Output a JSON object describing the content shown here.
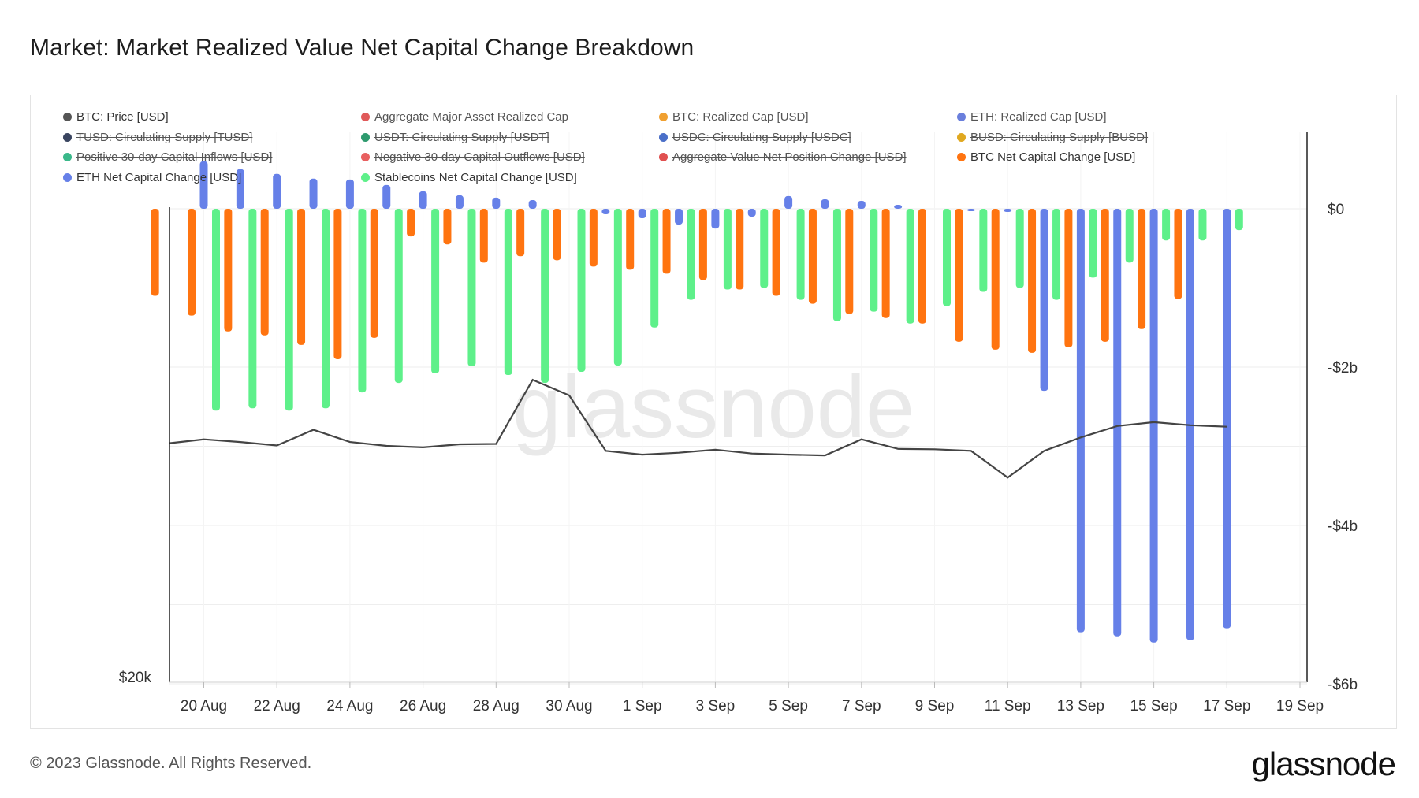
{
  "title": "Market: Market Realized Value Net Capital Change Breakdown",
  "footer": "© 2023 Glassnode. All Rights Reserved.",
  "brand": "glassnode",
  "watermark": "glassnode",
  "legend": [
    {
      "label": "BTC: Price [USD]",
      "color": "#555555",
      "active": true
    },
    {
      "label": "Aggregate Major Asset Realized Cap",
      "color": "#e05a5a",
      "active": false
    },
    {
      "label": "BTC: Realized Cap [USD]",
      "color": "#f0a030",
      "active": false
    },
    {
      "label": "ETH: Realized Cap [USD]",
      "color": "#6a7fdc",
      "active": false
    },
    {
      "label": "TUSD: Circulating Supply [TUSD]",
      "color": "#3a4560",
      "active": false
    },
    {
      "label": "USDT: Circulating Supply [USDT]",
      "color": "#2e9a6e",
      "active": false
    },
    {
      "label": "USDC: Circulating Supply [USDC]",
      "color": "#4a6fc8",
      "active": false
    },
    {
      "label": "BUSD: Circulating Supply [BUSD]",
      "color": "#e0a820",
      "active": false
    },
    {
      "label": "Positive 30-day Capital Inflows [USD]",
      "color": "#3ab88a",
      "active": false
    },
    {
      "label": "Negative 30-day Capital Outflows [USD]",
      "color": "#e86060",
      "active": false
    },
    {
      "label": "Aggregate Value Net Position Change [USD]",
      "color": "#e05050",
      "active": false
    },
    {
      "label": "BTC Net Capital Change [USD]",
      "color": "#ff7410",
      "active": true
    },
    {
      "label": "ETH Net Capital Change [USD]",
      "color": "#6680e8",
      "active": true
    },
    {
      "label": "Stablecoins Net Capital Change [USD]",
      "color": "#5ef08a",
      "active": true
    }
  ],
  "chart_data": {
    "type": "bar",
    "x_ticks": [
      "20 Aug",
      "22 Aug",
      "24 Aug",
      "26 Aug",
      "28 Aug",
      "30 Aug",
      "1 Sep",
      "3 Sep",
      "5 Sep",
      "7 Sep",
      "9 Sep",
      "11 Sep",
      "13 Sep",
      "15 Sep",
      "17 Sep",
      "19 Sep"
    ],
    "y_right_ticks": [
      "$0",
      "-$2b",
      "-$4b",
      "-$6b"
    ],
    "y_right_values": [
      0,
      -2,
      -4,
      -6
    ],
    "y_left_ticks": [
      "$20k"
    ],
    "y_right_lim": [
      -6.0,
      0.95
    ],
    "y_unit": "billion USD",
    "dates": [
      "19 Aug",
      "20 Aug",
      "21 Aug",
      "22 Aug",
      "23 Aug",
      "24 Aug",
      "25 Aug",
      "26 Aug",
      "27 Aug",
      "28 Aug",
      "29 Aug",
      "30 Aug",
      "31 Aug",
      "1 Sep",
      "2 Sep",
      "3 Sep",
      "4 Sep",
      "5 Sep",
      "6 Sep",
      "7 Sep",
      "8 Sep",
      "9 Sep",
      "10 Sep",
      "11 Sep",
      "12 Sep",
      "13 Sep",
      "14 Sep",
      "15 Sep",
      "16 Sep",
      "17 Sep",
      "18 Sep"
    ],
    "series": [
      {
        "name": "ETH Net Capital Change [USD]",
        "color": "#6680e8",
        "values": [
          null,
          0.6,
          0.5,
          0.44,
          0.38,
          0.37,
          0.3,
          0.22,
          0.17,
          0.14,
          0.11,
          null,
          -0.07,
          -0.12,
          -0.2,
          -0.25,
          -0.1,
          0.16,
          0.12,
          0.1,
          0.05,
          null,
          -0.03,
          -0.04,
          -2.3,
          -5.35,
          -5.4,
          -5.48,
          -5.45,
          -5.3,
          null
        ]
      },
      {
        "name": "BTC Net Capital Change [USD]",
        "color": "#ff7410",
        "values": [
          -1.1,
          -1.35,
          -1.55,
          -1.6,
          -1.72,
          -1.9,
          -1.63,
          -0.35,
          -0.45,
          -0.68,
          -0.6,
          -0.65,
          -0.73,
          -0.77,
          -0.82,
          -0.9,
          -1.02,
          -1.1,
          -1.2,
          -1.33,
          -1.38,
          -1.45,
          -1.68,
          -1.78,
          -1.82,
          -1.75,
          -1.68,
          -1.52,
          -1.14,
          null,
          null
        ]
      },
      {
        "name": "Stablecoins Net Capital Change [USD]",
        "color": "#5ef08a",
        "values": [
          null,
          -2.55,
          -2.52,
          -2.55,
          -2.52,
          -2.32,
          -2.2,
          -2.08,
          -1.99,
          -2.1,
          -2.2,
          -2.06,
          -1.98,
          -1.5,
          -1.15,
          -1.02,
          -1.0,
          -1.15,
          -1.42,
          -1.3,
          -1.45,
          -1.23,
          -1.05,
          -1.0,
          -1.15,
          -0.87,
          -0.68,
          -0.4,
          -0.4,
          -0.27,
          null
        ]
      },
      {
        "name": "BTC: Price [USD]",
        "color": "#444444",
        "axis": "left",
        "values": [
          26050,
          26150,
          26080,
          25990,
          26400,
          26080,
          25980,
          25940,
          26020,
          26030,
          27710,
          27300,
          25850,
          25750,
          25800,
          25880,
          25780,
          25750,
          25730,
          26150,
          25900,
          25890,
          25850,
          25150,
          25850,
          26200,
          26500,
          26600,
          26520,
          26480,
          null
        ]
      }
    ]
  }
}
